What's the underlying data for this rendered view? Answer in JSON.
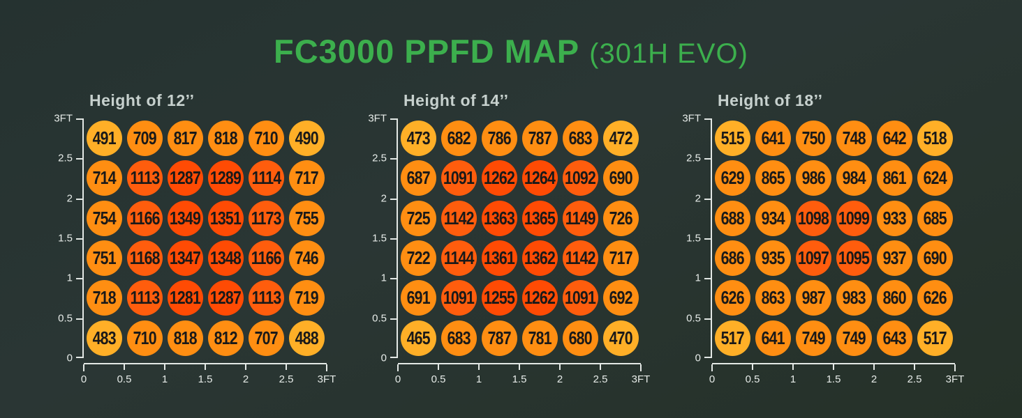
{
  "page_title": {
    "main": "FC3000 PPFD MAP",
    "sub": "(301H EVO)"
  },
  "colors": {
    "title_green": "#3CAF4D",
    "chart_title_gray": "#C7D1CE",
    "axis_line": "#E3E8E5",
    "circle_number_text": "#191919",
    "band_low": "#FFAF27",
    "band_mid": "#FF8E12",
    "band_high": "#FF5D0D",
    "band_max": "#FF4B04"
  },
  "color_scale": {
    "bands": [
      {
        "max_value": 530,
        "color": "#FFAF27",
        "meaning": "lowest PPFD"
      },
      {
        "max_value": 1050,
        "color": "#FF8E12",
        "meaning": "medium PPFD"
      },
      {
        "max_value": 1200,
        "color": "#FF5D0D",
        "meaning": "high PPFD"
      },
      {
        "max_value": 99999,
        "color": "#FF4B04",
        "meaning": "highest PPFD"
      }
    ]
  },
  "axes": {
    "x_tick_labels": [
      "0",
      "0.5",
      "1",
      "1.5",
      "2",
      "2.5",
      "3FT"
    ],
    "y_tick_labels": [
      "3FT",
      "2.5",
      "2",
      "1.5",
      "1",
      "0.5",
      "0"
    ],
    "x_range_ft": [
      0,
      3
    ],
    "y_range_ft": [
      0,
      3
    ]
  },
  "chart_data": [
    {
      "type": "heatmap",
      "title": "Height of 12’’",
      "height_inches": 12,
      "col_centers_ft": [
        0.25,
        0.75,
        1.25,
        1.75,
        2.25,
        2.75
      ],
      "row_centers_ft": [
        2.75,
        2.25,
        1.75,
        1.25,
        0.75,
        0.25
      ],
      "values": [
        [
          491,
          709,
          817,
          818,
          710,
          490
        ],
        [
          714,
          1113,
          1287,
          1289,
          1114,
          717
        ],
        [
          754,
          1166,
          1349,
          1351,
          1173,
          755
        ],
        [
          751,
          1168,
          1347,
          1348,
          1166,
          746
        ],
        [
          718,
          1113,
          1281,
          1287,
          1113,
          719
        ],
        [
          483,
          710,
          818,
          812,
          707,
          488
        ]
      ]
    },
    {
      "type": "heatmap",
      "title": "Height of 14’’",
      "height_inches": 14,
      "col_centers_ft": [
        0.25,
        0.75,
        1.25,
        1.75,
        2.25,
        2.75
      ],
      "row_centers_ft": [
        2.75,
        2.25,
        1.75,
        1.25,
        0.75,
        0.25
      ],
      "values": [
        [
          473,
          682,
          786,
          787,
          683,
          472
        ],
        [
          687,
          1091,
          1262,
          1264,
          1092,
          690
        ],
        [
          725,
          1142,
          1363,
          1365,
          1149,
          726
        ],
        [
          722,
          1144,
          1361,
          1362,
          1142,
          717
        ],
        [
          691,
          1091,
          1255,
          1262,
          1091,
          692
        ],
        [
          465,
          683,
          787,
          781,
          680,
          470
        ]
      ]
    },
    {
      "type": "heatmap",
      "title": "Height of 18’’",
      "height_inches": 18,
      "col_centers_ft": [
        0.25,
        0.75,
        1.25,
        1.75,
        2.25,
        2.75
      ],
      "row_centers_ft": [
        2.75,
        2.25,
        1.75,
        1.25,
        0.75,
        0.25
      ],
      "values": [
        [
          515,
          641,
          750,
          748,
          642,
          518
        ],
        [
          629,
          865,
          986,
          984,
          861,
          624
        ],
        [
          688,
          934,
          1098,
          1099,
          933,
          685
        ],
        [
          686,
          935,
          1097,
          1095,
          937,
          690
        ],
        [
          626,
          863,
          987,
          983,
          860,
          626
        ],
        [
          517,
          641,
          749,
          749,
          643,
          517
        ]
      ]
    }
  ]
}
